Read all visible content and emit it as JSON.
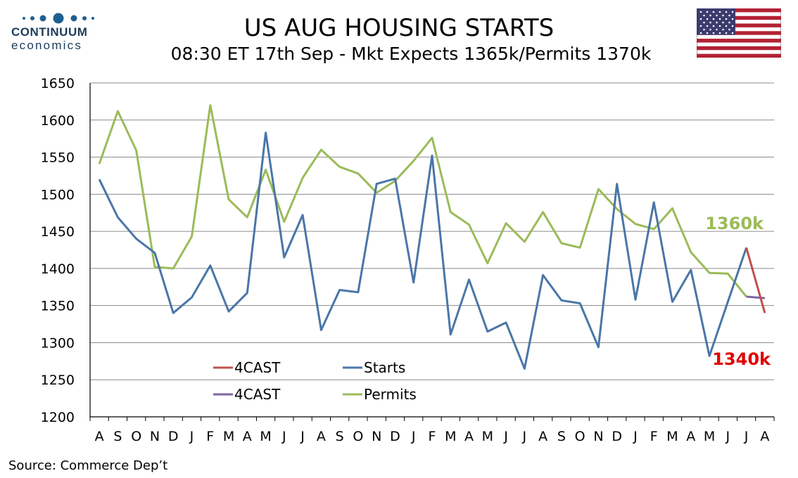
{
  "header": {
    "title": "US AUG HOUSING STARTS",
    "subtitle": "08:30 ET 17th Sep - Mkt Expects 1365k/Permits 1370k"
  },
  "logo": {
    "name": "CONTINUUM",
    "sub": "economics"
  },
  "footer": {
    "source": "Source: Commerce Dep’t"
  },
  "colors": {
    "starts": "#4a76a8",
    "permits": "#9bbb59",
    "forecast_starts": "#c0504d",
    "forecast_permits": "#8064a2",
    "grid": "#8c8c8c",
    "logo": "#1f5f8f",
    "annotation_permits": "#9bbb59",
    "annotation_starts": "#e00000"
  },
  "chart_data": {
    "type": "line",
    "categories": [
      "A",
      "S",
      "O",
      "N",
      "D",
      "J",
      "F",
      "M",
      "A",
      "M",
      "J",
      "J",
      "A",
      "S",
      "O",
      "N",
      "D",
      "J",
      "F",
      "M",
      "A",
      "M",
      "J",
      "J",
      "A",
      "S",
      "O",
      "N",
      "D",
      "J",
      "F",
      "M",
      "A",
      "M",
      "J",
      "J",
      "A"
    ],
    "ylim": [
      1200,
      1650
    ],
    "yticks": [
      1200,
      1250,
      1300,
      1350,
      1400,
      1450,
      1500,
      1550,
      1600,
      1650
    ],
    "grid": true,
    "legend_position": "bottom-left",
    "series": [
      {
        "name": "4CAST",
        "color": "#c0504d",
        "values": [
          null,
          null,
          null,
          null,
          null,
          null,
          null,
          null,
          null,
          null,
          null,
          null,
          null,
          null,
          null,
          null,
          null,
          null,
          null,
          null,
          null,
          null,
          null,
          null,
          null,
          null,
          null,
          null,
          null,
          null,
          null,
          null,
          null,
          null,
          null,
          1428,
          1340
        ]
      },
      {
        "name": "Starts",
        "color": "#4a76a8",
        "values": [
          1520,
          1469,
          1440,
          1421,
          1340,
          1361,
          1404,
          1342,
          1367,
          1583,
          1415,
          1472,
          1317,
          1371,
          1368,
          1514,
          1521,
          1381,
          1552,
          1311,
          1385,
          1315,
          1327,
          1265,
          1391,
          1357,
          1353,
          1294,
          1514,
          1358,
          1489,
          1355,
          1398,
          1282,
          1355,
          1428,
          null
        ]
      },
      {
        "name": "4CAST",
        "color": "#8064a2",
        "values": [
          null,
          null,
          null,
          null,
          null,
          null,
          null,
          null,
          null,
          null,
          null,
          null,
          null,
          null,
          null,
          null,
          null,
          null,
          null,
          null,
          null,
          null,
          null,
          null,
          null,
          null,
          null,
          null,
          null,
          null,
          null,
          null,
          null,
          null,
          null,
          1362,
          1360
        ]
      },
      {
        "name": "Permits",
        "color": "#9bbb59",
        "values": [
          1541,
          1612,
          1559,
          1402,
          1400,
          1443,
          1620,
          1493,
          1469,
          1533,
          1463,
          1522,
          1560,
          1537,
          1528,
          1502,
          1518,
          1545,
          1576,
          1476,
          1459,
          1407,
          1461,
          1436,
          1476,
          1434,
          1428,
          1507,
          1480,
          1460,
          1453,
          1481,
          1422,
          1394,
          1393,
          1362,
          null
        ]
      }
    ],
    "annotations": [
      {
        "text": "1360k",
        "series": "Permits"
      },
      {
        "text": "1340k",
        "series": "Starts"
      }
    ]
  }
}
